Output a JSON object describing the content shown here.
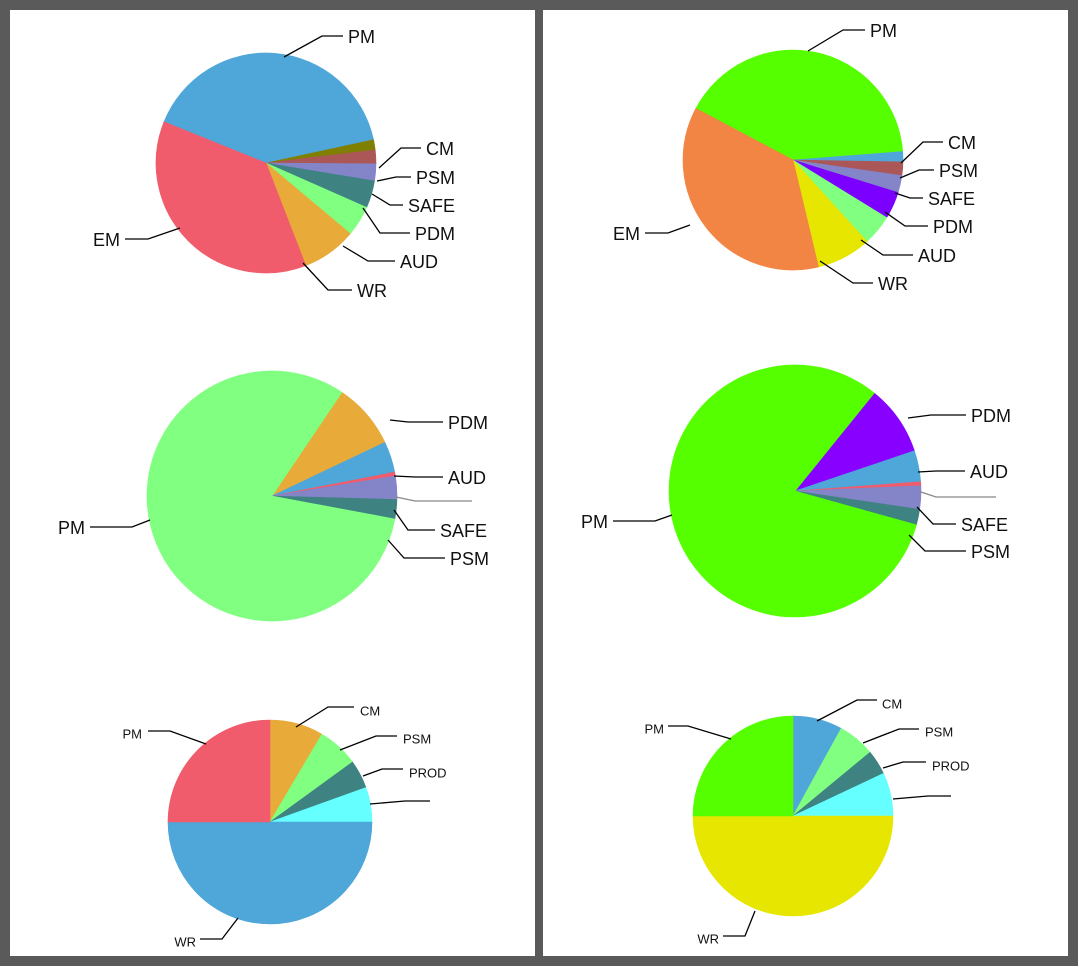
{
  "colors": {
    "background": "#5a5a5a",
    "panel": "#ffffff",
    "leader": "#000000",
    "slice_border": "#ffffff"
  },
  "panels": [
    {
      "name": "left",
      "charts": [
        {
          "type": "pie",
          "slices": [
            {
              "label": "PM",
              "value": 40.5,
              "color": "#4fa6d9"
            },
            {
              "label": "CM",
              "value": 1.5,
              "color": "#808000"
            },
            {
              "label": "PSM",
              "value": 2.0,
              "color": "#ab5757"
            },
            {
              "label": "SAFE",
              "value": 2.5,
              "color": "#8484c8"
            },
            {
              "label": "PDM",
              "value": 4.0,
              "color": "#3e8282"
            },
            {
              "label": "AUD",
              "value": 4.5,
              "color": "#80ff80"
            },
            {
              "label": "WR",
              "value": 8.0,
              "color": "#e8aa38"
            },
            {
              "label": "EM",
              "value": 37.0,
              "color": "#f05c6c"
            }
          ]
        },
        {
          "type": "pie",
          "slices": [
            {
              "label": "PDM",
              "value": 8.5,
              "color": "#e8aa38"
            },
            {
              "label": "AUD",
              "value": 4.0,
              "color": "#4fa6d9"
            },
            {
              "label": "",
              "value": 0.5,
              "color": "#f05c6c"
            },
            {
              "label": "SAFE",
              "value": 3.0,
              "color": "#8484c8"
            },
            {
              "label": "PSM",
              "value": 2.5,
              "color": "#3e8282"
            },
            {
              "label": "PM",
              "value": 81.5,
              "color": "#80ff80"
            }
          ]
        },
        {
          "type": "pie",
          "slices": [
            {
              "label": "CM",
              "value": 8.5,
              "color": "#e8aa38"
            },
            {
              "label": "PSM",
              "value": 6.5,
              "color": "#80ff80"
            },
            {
              "label": "PROD",
              "value": 4.5,
              "color": "#3e8282"
            },
            {
              "label": "",
              "value": 5.5,
              "color": "#66ffff"
            },
            {
              "label": "WR",
              "value": 50.0,
              "color": "#4fa6d9"
            },
            {
              "label": "PM",
              "value": 25.0,
              "color": "#f05c6c"
            }
          ]
        }
      ]
    },
    {
      "name": "right",
      "charts": [
        {
          "type": "pie",
          "slices": [
            {
              "label": "PM",
              "value": 41.0,
              "color": "#55ff00"
            },
            {
              "label": "CM",
              "value": 1.5,
              "color": "#4fa6d9"
            },
            {
              "label": "PSM",
              "value": 2.0,
              "color": "#ab5757"
            },
            {
              "label": "SAFE",
              "value": 2.5,
              "color": "#8484c8"
            },
            {
              "label": "PDM",
              "value": 4.0,
              "color": "#7b00ff"
            },
            {
              "label": "AUD",
              "value": 4.5,
              "color": "#80ff80"
            },
            {
              "label": "WR",
              "value": 8.0,
              "color": "#e6e600"
            },
            {
              "label": "EM",
              "value": 36.5,
              "color": "#f28444"
            }
          ]
        },
        {
          "type": "pie",
          "slices": [
            {
              "label": "PDM",
              "value": 9.0,
              "color": "#8800ff"
            },
            {
              "label": "AUD",
              "value": 4.0,
              "color": "#4fa6d9"
            },
            {
              "label": "",
              "value": 0.5,
              "color": "#f05c6c"
            },
            {
              "label": "SAFE",
              "value": 3.0,
              "color": "#8484c8"
            },
            {
              "label": "PSM",
              "value": 2.0,
              "color": "#3e8282"
            },
            {
              "label": "PM",
              "value": 81.5,
              "color": "#55ff00"
            }
          ]
        },
        {
          "type": "pie",
          "slices": [
            {
              "label": "CM",
              "value": 8.0,
              "color": "#4fa6d9"
            },
            {
              "label": "PSM",
              "value": 6.0,
              "color": "#80ff80"
            },
            {
              "label": "PROD",
              "value": 4.0,
              "color": "#3e8282"
            },
            {
              "label": "",
              "value": 7.0,
              "color": "#66ffff"
            },
            {
              "label": "WR",
              "value": 50.0,
              "color": "#e6e600"
            },
            {
              "label": "PM",
              "value": 25.0,
              "color": "#55ff00"
            }
          ]
        }
      ]
    }
  ],
  "chart_data": [
    {
      "type": "pie",
      "position": "left-top",
      "categories": [
        "PM",
        "CM",
        "PSM",
        "SAFE",
        "PDM",
        "AUD",
        "WR",
        "EM"
      ],
      "values": [
        40.5,
        1.5,
        2.0,
        2.5,
        4.0,
        4.5,
        8.0,
        37.0
      ]
    },
    {
      "type": "pie",
      "position": "left-middle",
      "categories": [
        "PDM",
        "AUD",
        "",
        "SAFE",
        "PSM",
        "PM"
      ],
      "values": [
        8.5,
        4.0,
        0.5,
        3.0,
        2.5,
        81.5
      ]
    },
    {
      "type": "pie",
      "position": "left-bottom",
      "categories": [
        "CM",
        "PSM",
        "PROD",
        "",
        "WR",
        "PM"
      ],
      "values": [
        8.5,
        6.5,
        4.5,
        5.5,
        50.0,
        25.0
      ]
    },
    {
      "type": "pie",
      "position": "right-top",
      "categories": [
        "PM",
        "CM",
        "PSM",
        "SAFE",
        "PDM",
        "AUD",
        "WR",
        "EM"
      ],
      "values": [
        41.0,
        1.5,
        2.0,
        2.5,
        4.0,
        4.5,
        8.0,
        36.5
      ]
    },
    {
      "type": "pie",
      "position": "right-middle",
      "categories": [
        "PDM",
        "AUD",
        "",
        "SAFE",
        "PSM",
        "PM"
      ],
      "values": [
        9.0,
        4.0,
        0.5,
        3.0,
        2.0,
        81.5
      ]
    },
    {
      "type": "pie",
      "position": "right-bottom",
      "categories": [
        "CM",
        "PSM",
        "PROD",
        "",
        "WR",
        "PM"
      ],
      "values": [
        8.0,
        6.0,
        4.0,
        7.0,
        50.0,
        25.0
      ]
    }
  ]
}
